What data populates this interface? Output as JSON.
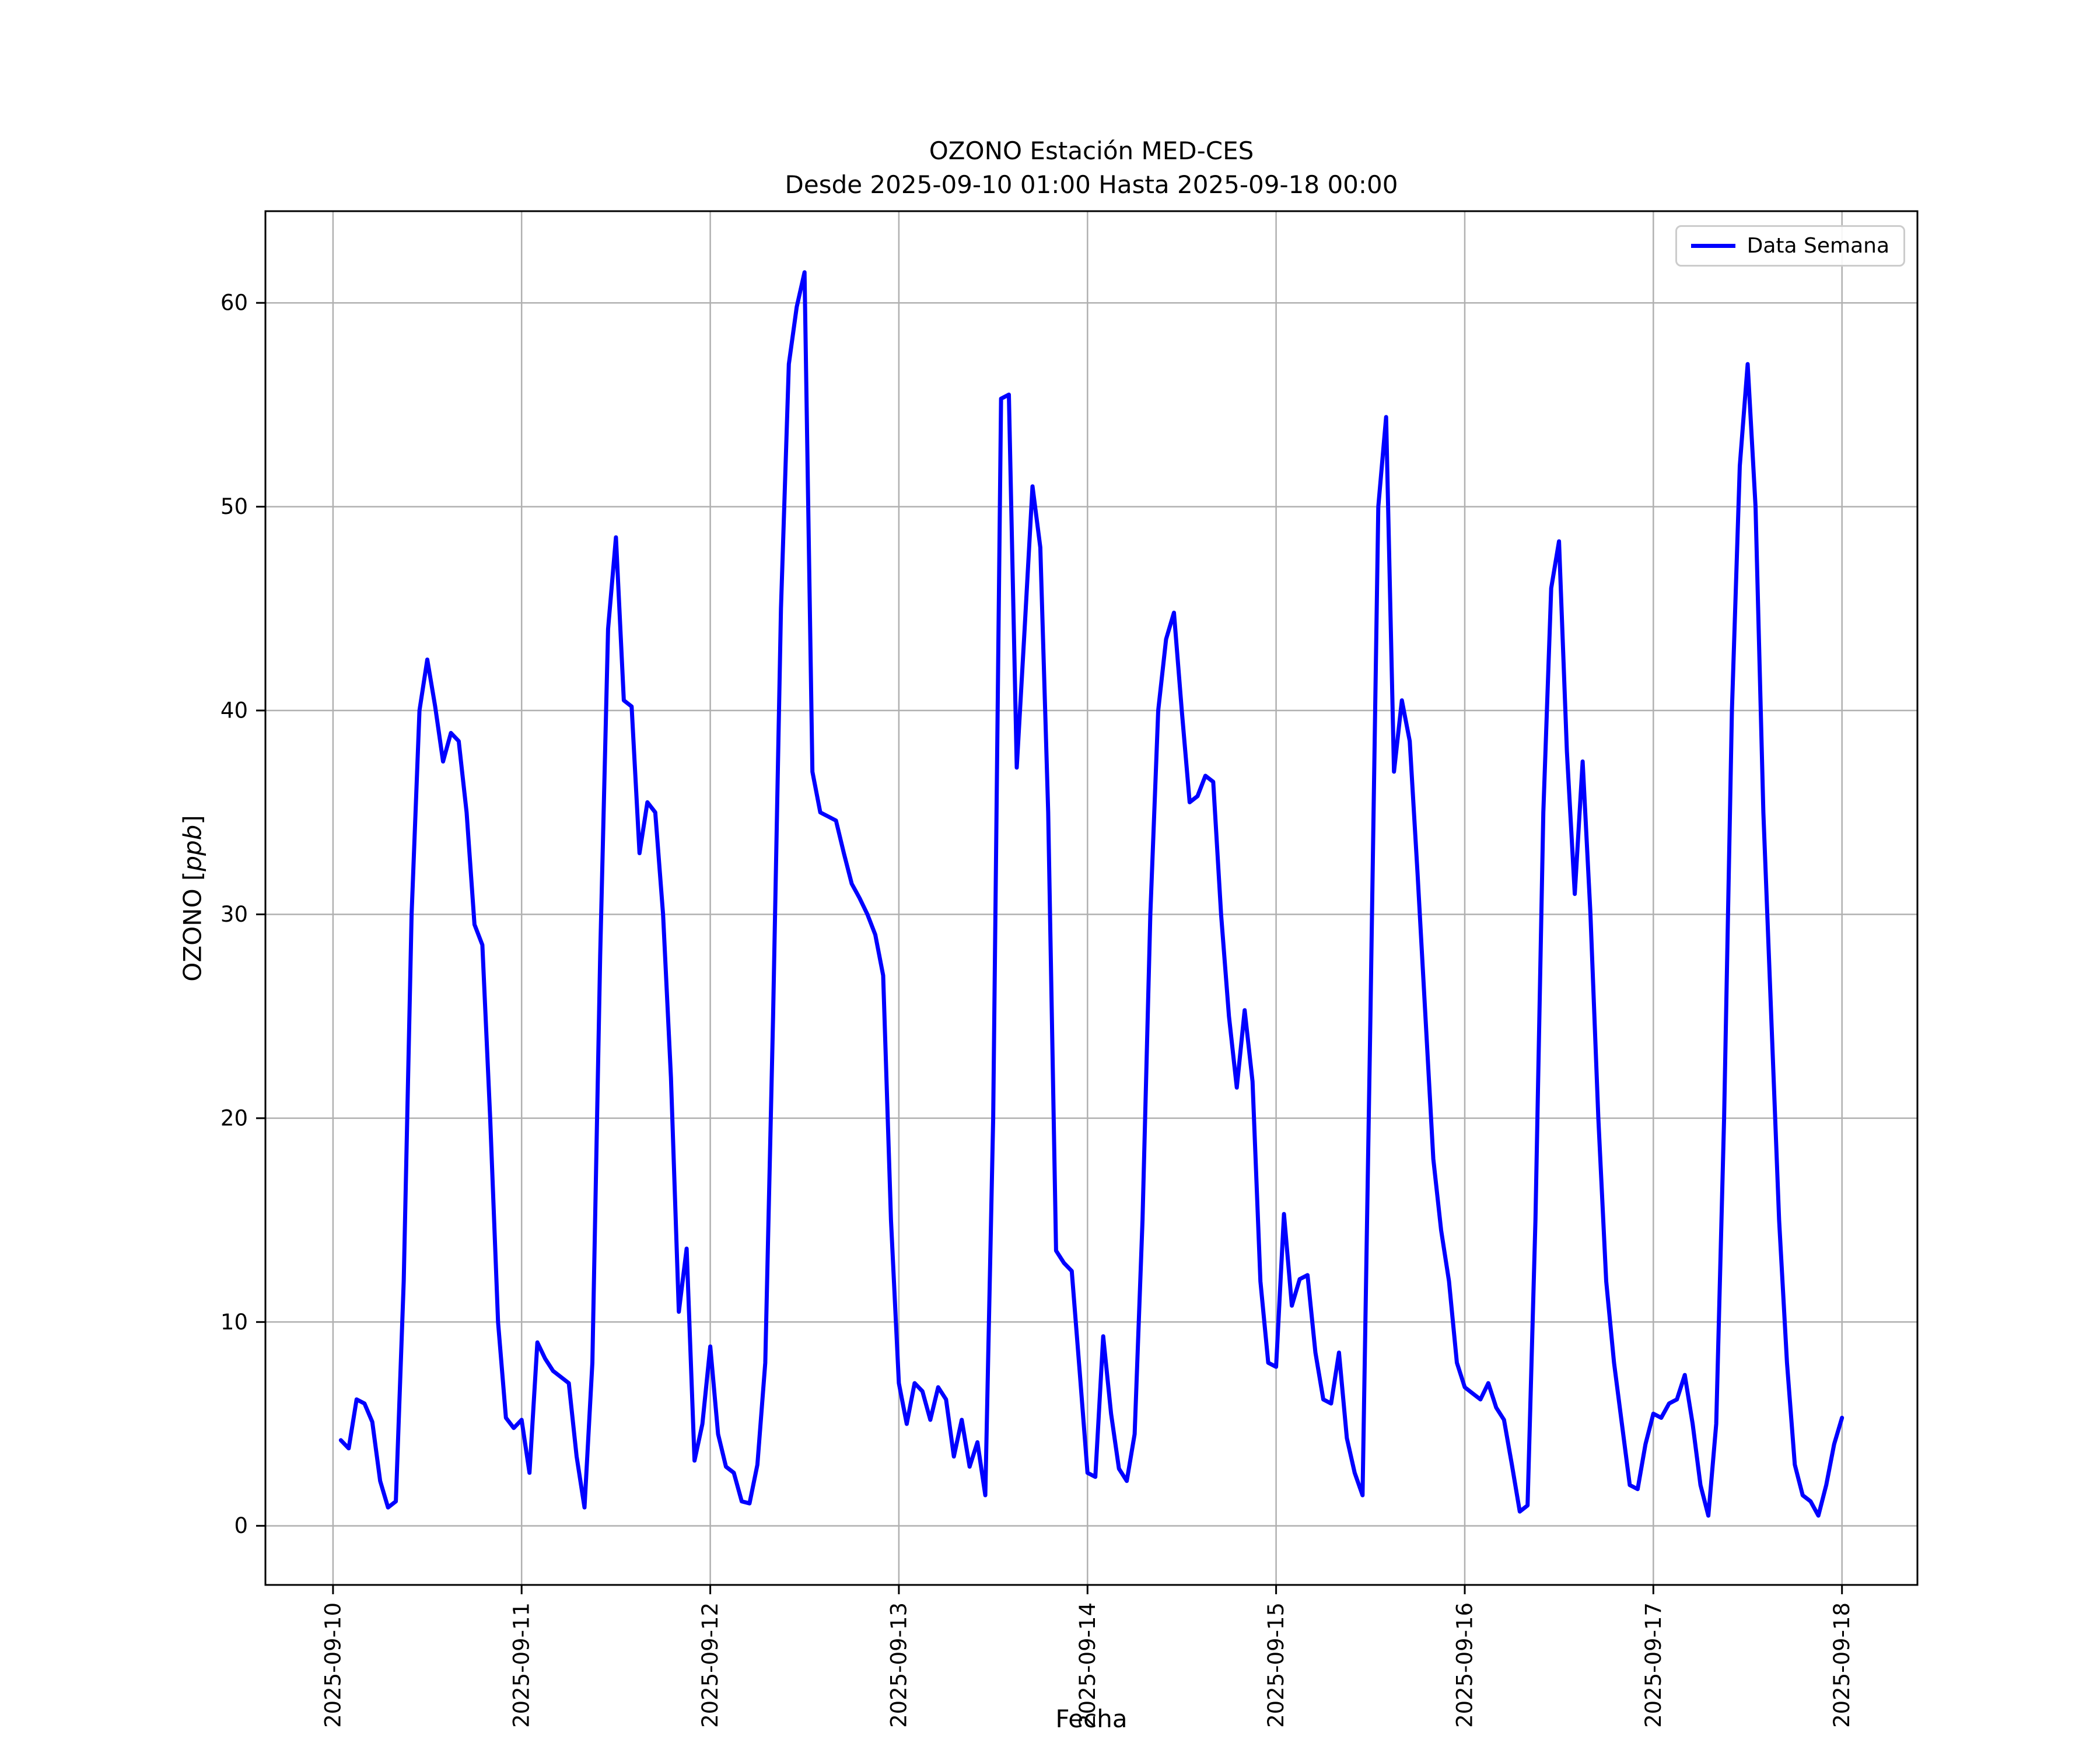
{
  "chart_data": {
    "type": "line",
    "title": "OZONO Estación MED-CES",
    "subtitle": "Desde 2025-09-10 01:00 Hasta 2025-09-18 00:00",
    "xlabel": "Fecha",
    "ylabel": "OZONO [ppb]",
    "ylabel_parts": {
      "prefix": "OZONO [",
      "math": "ppb",
      "suffix": "]"
    },
    "legend": {
      "position": "upper right",
      "label": "Data Semana"
    },
    "grid": true,
    "line_color": "#0000ff",
    "grid_color": "#b0b0b0",
    "axes_color": "#000000",
    "x_tick_labels": [
      "2025-09-10",
      "2025-09-11",
      "2025-09-12",
      "2025-09-13",
      "2025-09-14",
      "2025-09-15",
      "2025-09-16",
      "2025-09-17",
      "2025-09-18"
    ],
    "x_tick_hours": [
      0,
      24,
      48,
      72,
      96,
      120,
      144,
      168,
      192
    ],
    "y_ticks": [
      0,
      10,
      20,
      30,
      40,
      50,
      60
    ],
    "xlim_hours": [
      -8.6,
      201.6
    ],
    "ylim": [
      -2.9,
      64.5
    ],
    "series": [
      {
        "name": "Data Semana",
        "color": "#0000ff",
        "x_start_label": "2025-09-10 01:00",
        "x_end_label": "2025-09-18 00:00",
        "x_start_hour": 1,
        "x_step_hours": 1,
        "values": [
          4.2,
          3.8,
          6.2,
          6.0,
          5.1,
          2.2,
          0.9,
          1.2,
          12.0,
          30.0,
          40.0,
          42.5,
          40.2,
          37.5,
          38.9,
          38.5,
          35.0,
          29.5,
          28.5,
          20.0,
          10.0,
          5.3,
          4.8,
          5.2,
          2.6,
          9.0,
          8.2,
          7.6,
          7.3,
          7.0,
          3.4,
          0.9,
          8.0,
          28.0,
          44.0,
          48.5,
          40.5,
          40.2,
          33.0,
          35.5,
          35.0,
          30.0,
          22.0,
          10.5,
          13.6,
          3.2,
          5.0,
          8.8,
          4.5,
          2.9,
          2.6,
          1.2,
          1.1,
          3.0,
          8.0,
          25.0,
          45.0,
          57.0,
          59.8,
          61.5,
          37.0,
          35.0,
          34.8,
          34.6,
          33.0,
          31.5,
          30.8,
          30.0,
          29.0,
          27.0,
          15.0,
          7.0,
          5.0,
          7.0,
          6.6,
          5.2,
          6.8,
          6.2,
          3.4,
          5.2,
          2.9,
          4.1,
          1.5,
          20.0,
          55.3,
          55.5,
          37.2,
          44.0,
          51.0,
          48.0,
          35.0,
          13.5,
          12.9,
          12.5,
          7.6,
          2.6,
          2.4,
          9.3,
          5.5,
          2.8,
          2.2,
          4.5,
          15.0,
          30.0,
          40.0,
          43.5,
          44.8,
          40.0,
          35.5,
          35.8,
          36.8,
          36.5,
          30.0,
          25.0,
          21.5,
          25.3,
          21.8,
          12.0,
          8.0,
          7.8,
          15.3,
          10.8,
          12.1,
          12.3,
          8.5,
          6.2,
          6.0,
          8.5,
          4.3,
          2.6,
          1.5,
          25.0,
          50.0,
          54.4,
          37.0,
          40.5,
          38.5,
          32.0,
          25.0,
          18.0,
          14.5,
          12.0,
          8.0,
          6.8,
          6.5,
          6.2,
          7.0,
          5.8,
          5.2,
          3.0,
          0.7,
          1.0,
          15.0,
          35.0,
          46.0,
          48.3,
          38.0,
          31.0,
          37.5,
          30.0,
          20.0,
          12.0,
          8.0,
          5.0,
          2.0,
          1.8,
          4.0,
          5.5,
          5.3,
          6.0,
          6.2,
          7.4,
          5.0,
          2.0,
          0.5,
          5.0,
          20.0,
          40.0,
          52.0,
          57.0,
          50.0,
          35.0,
          25.0,
          15.0,
          8.0,
          3.0,
          1.5,
          1.2,
          0.5,
          2.0,
          4.0,
          5.3
        ]
      }
    ]
  }
}
